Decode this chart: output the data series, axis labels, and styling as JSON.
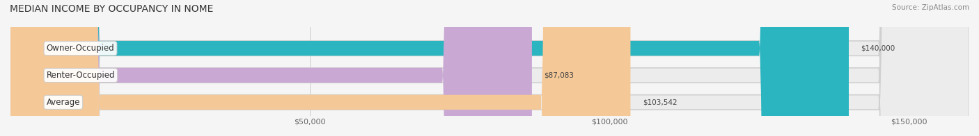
{
  "title": "MEDIAN INCOME BY OCCUPANCY IN NOME",
  "source": "Source: ZipAtlas.com",
  "categories": [
    "Owner-Occupied",
    "Renter-Occupied",
    "Average"
  ],
  "values": [
    140000,
    87083,
    103542
  ],
  "labels": [
    "$140,000",
    "$87,083",
    "$103,542"
  ],
  "bar_colors": [
    "#2ab5c0",
    "#c9a8d4",
    "#f5c897"
  ],
  "bar_edge_colors": [
    "#2ab5c0",
    "#c9a8d4",
    "#f5c897"
  ],
  "background_color": "#f5f5f5",
  "bar_bg_color": "#e8e8e8",
  "xlim": [
    0,
    160000
  ],
  "xticks": [
    0,
    50000,
    100000,
    150000
  ],
  "xticklabels": [
    "",
    "$50,000",
    "$100,000",
    "$150,000"
  ],
  "figsize": [
    14.06,
    1.96
  ],
  "dpi": 100
}
